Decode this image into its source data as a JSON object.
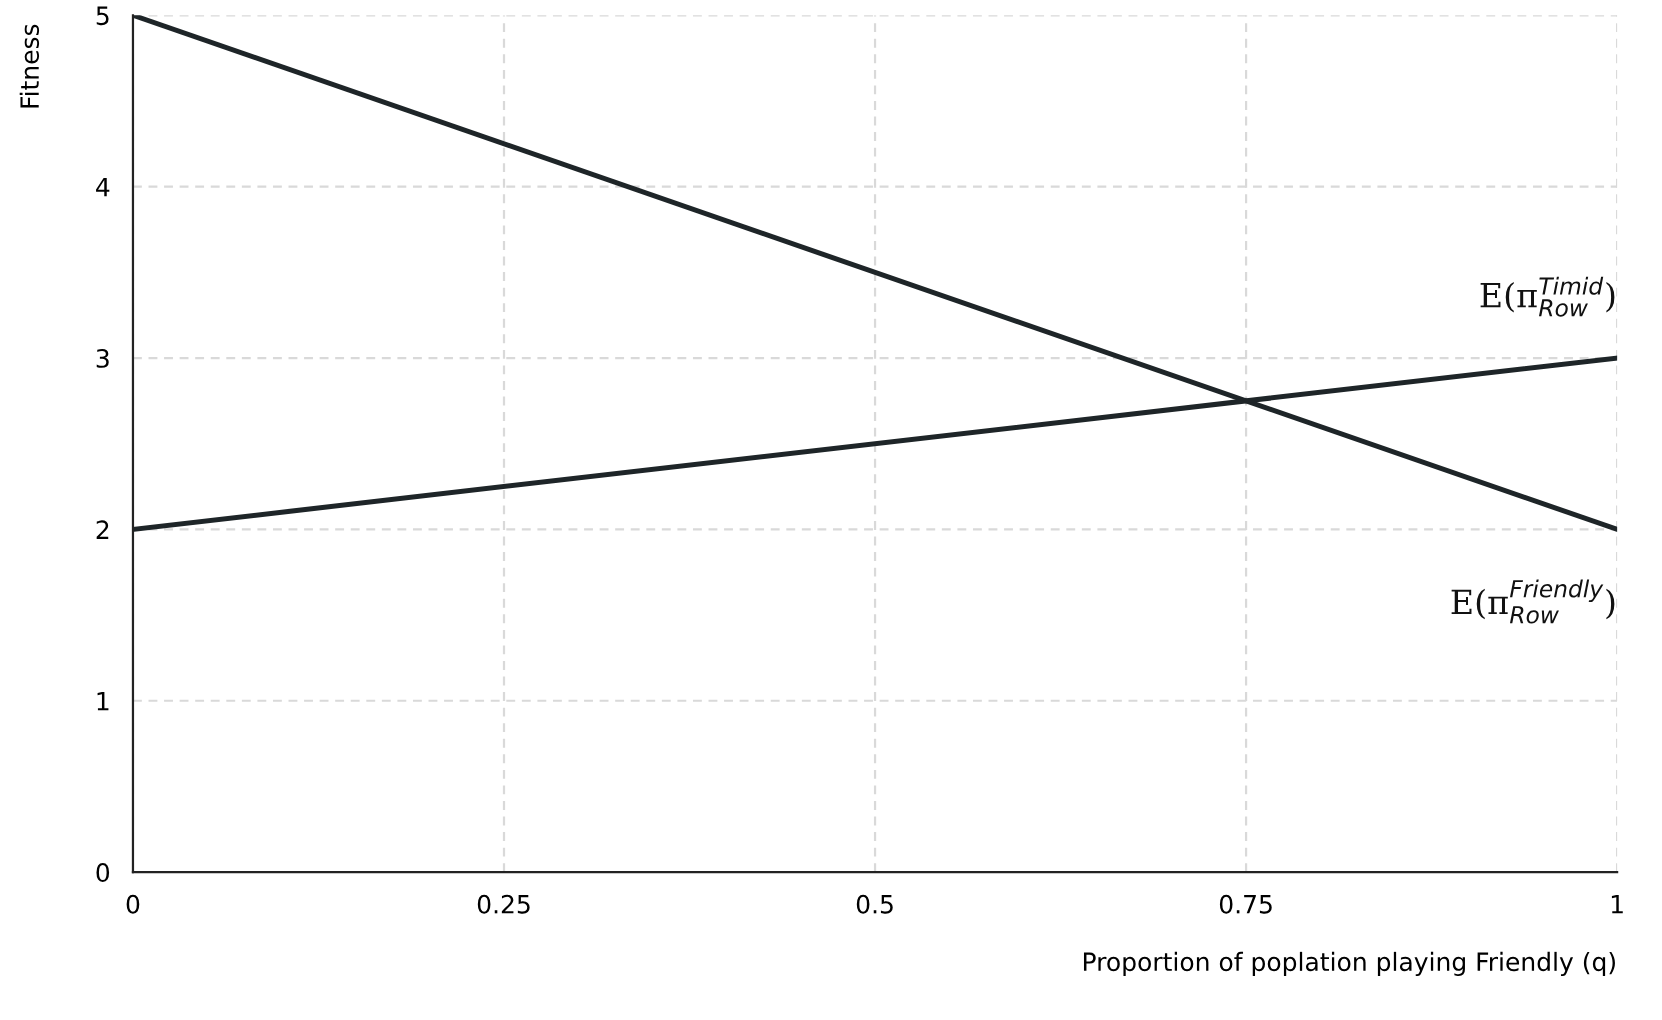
{
  "chart_data": {
    "type": "line",
    "ylabel": "Fitness",
    "xlabel": "Proportion of poplation playing Friendly (q)",
    "x": [
      0,
      1
    ],
    "series": [
      {
        "name": "E(π$^{Friendly}$$_{Row}$)",
        "color": "#1e2528",
        "values": [
          5,
          2
        ]
      },
      {
        "name": "E(π$^{Timid}$$_{Row}$)",
        "color": "#1e2528",
        "values": [
          2,
          3
        ]
      }
    ],
    "xlim": [
      0,
      1
    ],
    "ylim": [
      0,
      5
    ],
    "xticks": [
      0,
      0.25,
      0.5,
      0.75,
      1
    ],
    "yticks": [
      0,
      1,
      2,
      3,
      4,
      5
    ],
    "grid": true,
    "legend": false,
    "marker": "none",
    "line_style": "solid"
  }
}
